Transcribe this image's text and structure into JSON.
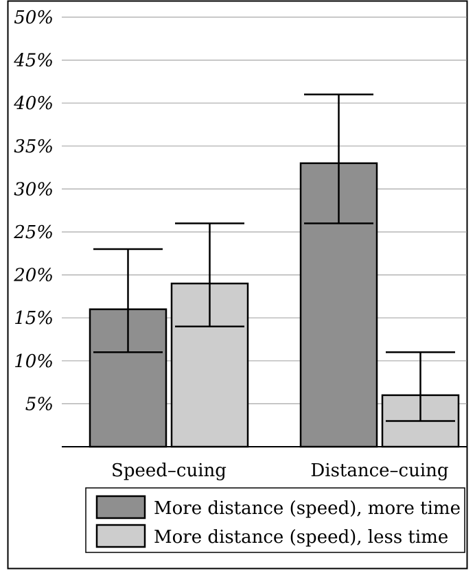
{
  "chart_data": {
    "type": "bar",
    "categories": [
      "Speed–cuing",
      "Distance–cuing"
    ],
    "series": [
      {
        "name": "More distance (speed), more time",
        "color": "#8f8f8f",
        "values": [
          16,
          33
        ],
        "error_low": [
          11,
          26
        ],
        "error_high": [
          23,
          41
        ]
      },
      {
        "name": "More distance (speed), less time",
        "color": "#cdcdcd",
        "values": [
          19,
          6
        ],
        "error_low": [
          14,
          3
        ],
        "error_high": [
          26,
          11
        ]
      }
    ],
    "ylim": [
      0,
      50
    ],
    "y_ticks": [
      5,
      10,
      15,
      20,
      25,
      30,
      35,
      40,
      45,
      50
    ],
    "y_tick_labels": [
      "5%",
      "10%",
      "15%",
      "20%",
      "25%",
      "30%",
      "35%",
      "40%",
      "45%",
      "50%"
    ],
    "grid": true,
    "legend_position": "bottom",
    "title": "",
    "xlabel": "",
    "ylabel": ""
  }
}
